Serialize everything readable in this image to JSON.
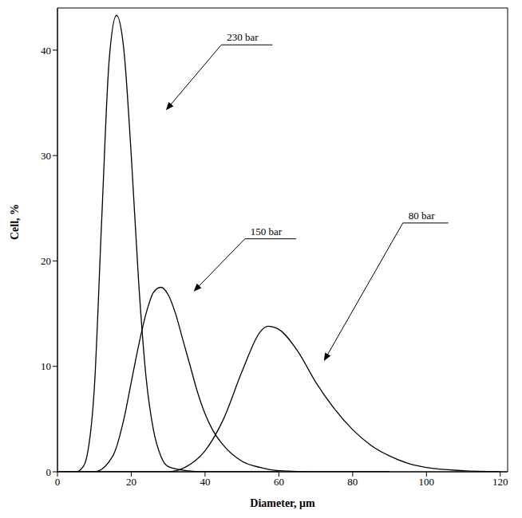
{
  "chart_data": {
    "type": "line",
    "x_label": "Diameter, μm",
    "y_label": "Cell, %",
    "xlim": [
      0,
      122
    ],
    "xticks": [
      0,
      20,
      40,
      60,
      80,
      100,
      120
    ],
    "ylim": [
      0,
      44
    ],
    "yticks": [
      0,
      10,
      20,
      30,
      40
    ],
    "grid": false,
    "series": [
      {
        "name": "230 bar",
        "color": "#000000",
        "x": [
          0,
          5,
          7,
          8,
          10,
          12,
          14,
          16,
          18,
          20,
          22,
          24,
          26,
          28,
          30,
          35,
          40,
          60
        ],
        "values": [
          0,
          0,
          0.5,
          1.5,
          8,
          24,
          39,
          43.3,
          40,
          30,
          18,
          9,
          4,
          1.5,
          0.5,
          0.1,
          0,
          0
        ]
      },
      {
        "name": "150 bar",
        "color": "#000000",
        "x": [
          0,
          10,
          15,
          18,
          20,
          22,
          24,
          26,
          28,
          30,
          32,
          34,
          36,
          38,
          40,
          42,
          45,
          50,
          55,
          60,
          70,
          90
        ],
        "values": [
          0,
          0,
          1.5,
          5,
          8.5,
          12,
          15,
          17,
          17.5,
          16.8,
          15,
          12.5,
          10,
          7.5,
          5.5,
          4,
          2.5,
          1,
          0.4,
          0.1,
          0,
          0
        ]
      },
      {
        "name": "80 bar",
        "color": "#000000",
        "x": [
          0,
          30,
          35,
          40,
          45,
          50,
          55,
          57,
          60,
          65,
          70,
          75,
          80,
          85,
          90,
          95,
          100,
          110,
          120
        ],
        "values": [
          0,
          0,
          0.5,
          2,
          5,
          9.5,
          13.3,
          13.8,
          13.5,
          11.5,
          8.5,
          6,
          4,
          2.5,
          1.5,
          0.8,
          0.4,
          0.1,
          0
        ]
      }
    ],
    "annotations": [
      {
        "text": "230 bar",
        "xy": [
          29.4,
          34.3
        ],
        "xytext": [
          44.4,
          40.5
        ]
      },
      {
        "text": "150 bar",
        "xy": [
          36.9,
          17.1
        ],
        "xytext": [
          50.8,
          22.1
        ]
      },
      {
        "text": "80 bar",
        "xy": [
          72.2,
          10.5
        ],
        "xytext": [
          93.6,
          23.6
        ]
      }
    ]
  }
}
